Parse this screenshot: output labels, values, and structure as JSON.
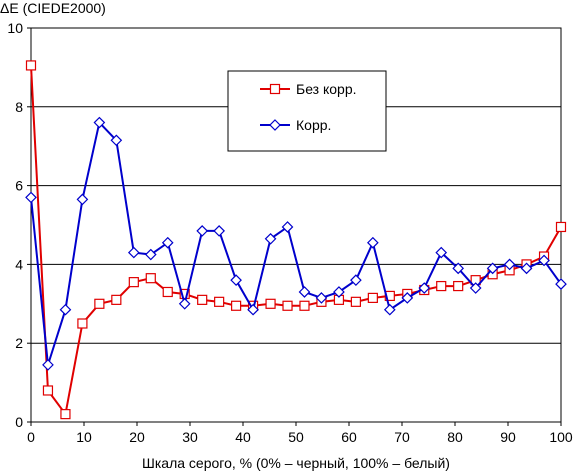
{
  "chart_data": {
    "type": "line",
    "title": "ΔE (CIEDE2000)",
    "xlabel": "Шкала серого, % (0% – черный, 100% – белый)",
    "ylabel": "",
    "xlim": [
      0,
      100
    ],
    "ylim": [
      0,
      10
    ],
    "xticks": [
      0,
      10,
      20,
      30,
      40,
      50,
      60,
      70,
      80,
      90,
      100
    ],
    "yticks": [
      0,
      2,
      4,
      6,
      8,
      10
    ],
    "grid": "horizontal",
    "legend": "upper-center",
    "series": [
      {
        "name": "Без корр.",
        "color": "#e00000",
        "marker": "square",
        "x": [
          0,
          3.2,
          6.5,
          9.7,
          12.9,
          16.1,
          19.4,
          22.6,
          25.8,
          29.0,
          32.3,
          35.5,
          38.7,
          41.9,
          45.2,
          48.4,
          51.6,
          54.8,
          58.1,
          61.3,
          64.5,
          67.7,
          71.0,
          74.2,
          77.4,
          80.6,
          83.9,
          87.1,
          90.3,
          93.5,
          96.8,
          100
        ],
        "values": [
          9.05,
          0.8,
          0.2,
          2.5,
          3.0,
          3.1,
          3.55,
          3.65,
          3.3,
          3.25,
          3.1,
          3.05,
          2.95,
          2.95,
          3.0,
          2.95,
          2.95,
          3.05,
          3.1,
          3.05,
          3.15,
          3.2,
          3.25,
          3.35,
          3.45,
          3.45,
          3.6,
          3.75,
          3.85,
          4.0,
          4.2,
          4.95
        ]
      },
      {
        "name": "Корр.",
        "color": "#0000cc",
        "marker": "diamond",
        "x": [
          0,
          3.2,
          6.5,
          9.7,
          12.9,
          16.1,
          19.4,
          22.6,
          25.8,
          29.0,
          32.3,
          35.5,
          38.7,
          41.9,
          45.2,
          48.4,
          51.6,
          54.8,
          58.1,
          61.3,
          64.5,
          67.7,
          71.0,
          74.2,
          77.4,
          80.6,
          83.9,
          87.1,
          90.3,
          93.5,
          96.8,
          100
        ],
        "values": [
          5.7,
          1.45,
          2.85,
          5.65,
          7.6,
          7.15,
          4.3,
          4.25,
          4.55,
          3.0,
          4.85,
          4.85,
          3.6,
          2.85,
          4.65,
          4.95,
          3.3,
          3.15,
          3.3,
          3.6,
          4.55,
          2.85,
          3.15,
          3.4,
          4.3,
          3.9,
          3.4,
          3.9,
          4.0,
          3.9,
          4.1,
          3.5
        ]
      }
    ]
  }
}
